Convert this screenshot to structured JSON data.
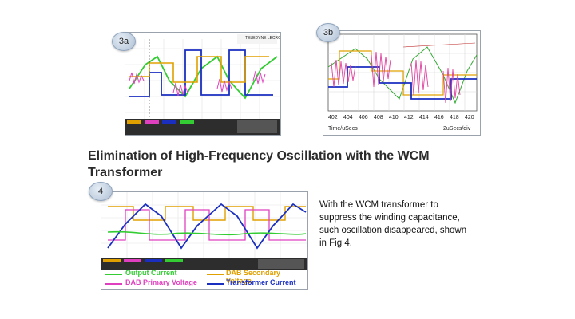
{
  "figures": [
    {
      "badge": "3a"
    },
    {
      "badge": "3b",
      "x_ticks": [
        "402",
        "404",
        "406",
        "408",
        "410",
        "412",
        "414",
        "416",
        "418",
        "420"
      ],
      "x_label": "Time/uSecs",
      "scale_label": "2uSecs/div"
    },
    {
      "badge": "4"
    }
  ],
  "heading": "Elimination of High-Frequency Oscillation with the WCM Transformer",
  "paragraph": "With the WCM transformer to suppress the winding capacitance, such oscillation disappeared, shown in Fig 4.",
  "legend": {
    "output_current": "Output Current",
    "dab_secondary_voltage": "DAB Secondary Voltage",
    "dab_primary_voltage": "DAB Primary Voltage",
    "transformer_current": "Transformer Current"
  },
  "colors": {
    "output_current": "#33cc33",
    "dab_secondary_voltage": "#e0a000",
    "dab_primary_voltage": "#e040c0",
    "transformer_current": "#1a2fc0"
  }
}
